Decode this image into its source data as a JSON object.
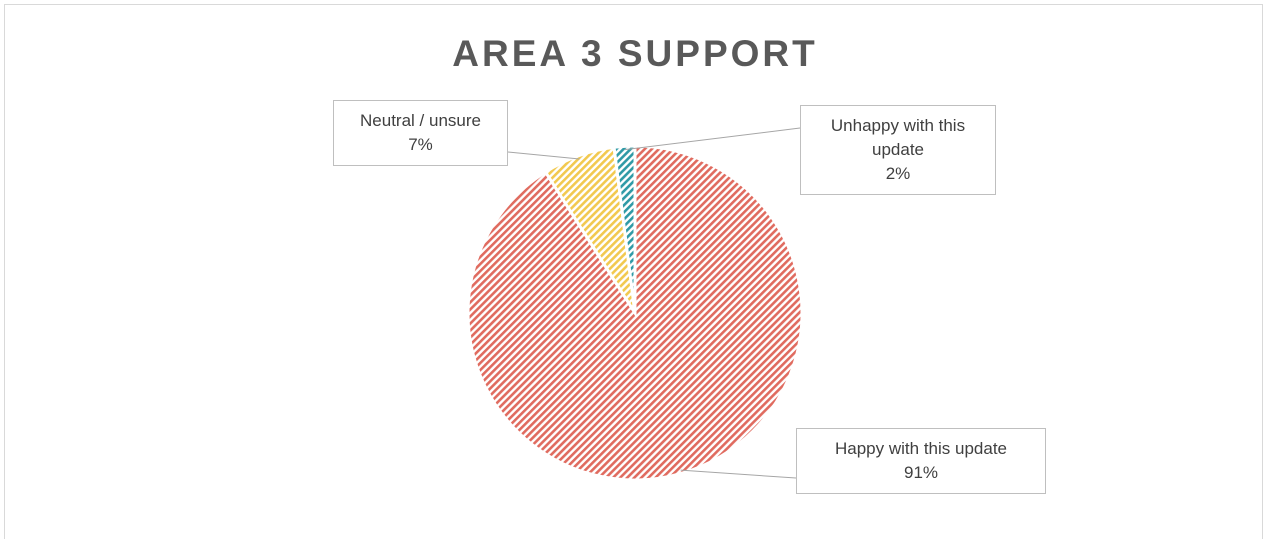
{
  "chart_data": {
    "type": "pie",
    "title": "AREA 3 SUPPORT",
    "categories": [
      "Happy with this update",
      "Neutral / unsure",
      "Unhappy with this update"
    ],
    "values": [
      91,
      7,
      2
    ],
    "value_labels": [
      "91%",
      "7%",
      "2%"
    ],
    "colors": [
      "#e06b5f",
      "#f2c94f",
      "#2f9aa6"
    ]
  }
}
